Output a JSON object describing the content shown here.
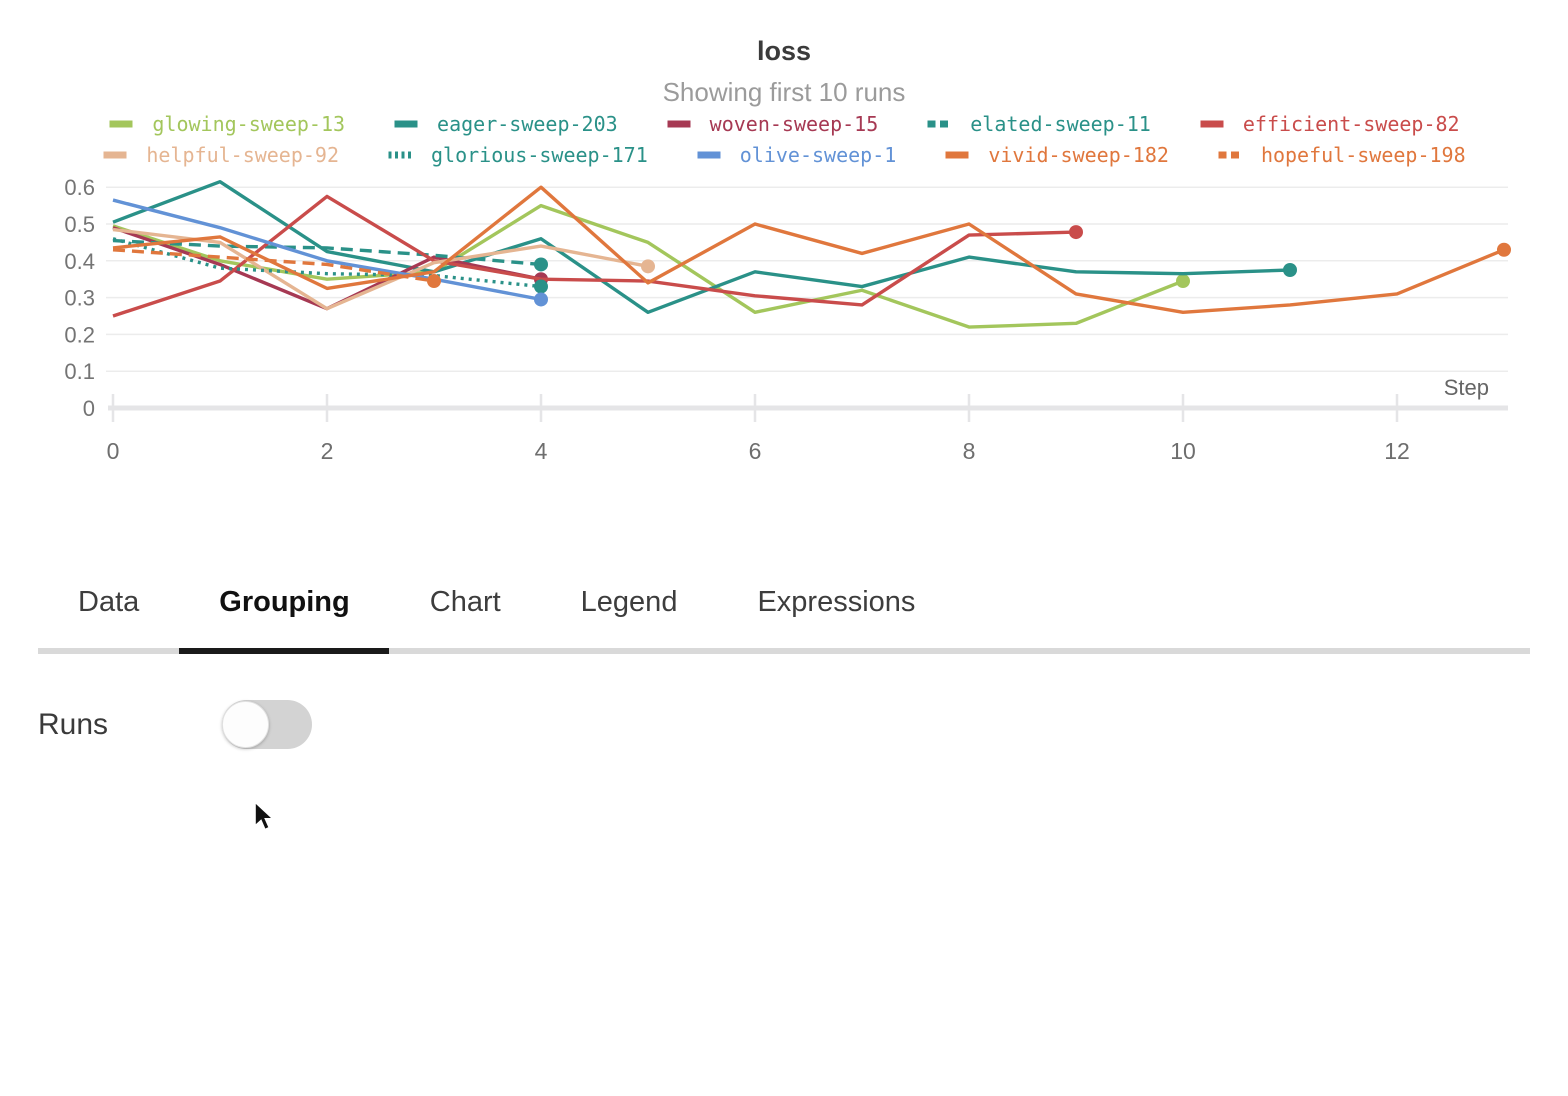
{
  "chart_data": {
    "type": "line",
    "title": "loss",
    "subtitle": "Showing first 10 runs",
    "xlabel": "Step",
    "x_ticks": [
      0,
      2,
      4,
      6,
      8,
      10,
      12
    ],
    "y_ticks": [
      0,
      0.1,
      0.2,
      0.3,
      0.4,
      0.5,
      0.6
    ],
    "xlim": [
      0,
      13
    ],
    "ylim": [
      0,
      0.65
    ],
    "grid": "horizontal-only",
    "legend_position": "top",
    "end_markers": "dot-on-last-point",
    "series": [
      {
        "name": "glowing-sweep-13",
        "color": "#a3c65c",
        "line_style": "solid",
        "values": [
          0.495,
          0.4,
          0.35,
          0.37,
          0.55,
          0.45,
          0.26,
          0.32,
          0.22,
          0.23,
          0.345
        ]
      },
      {
        "name": "eager-sweep-203",
        "color": "#2a9188",
        "line_style": "solid",
        "values": [
          0.505,
          0.615,
          0.425,
          0.37,
          0.46,
          0.26,
          0.37,
          0.33,
          0.41,
          0.37,
          0.365,
          0.375
        ]
      },
      {
        "name": "woven-sweep-15",
        "color": "#a63953",
        "line_style": "solid",
        "values": [
          0.49,
          0.39,
          0.27,
          0.41,
          0.35
        ]
      },
      {
        "name": "elated-sweep-11",
        "color": "#2a9188",
        "line_style": "dashed",
        "values": [
          0.455,
          0.44,
          0.435,
          0.415,
          0.39
        ]
      },
      {
        "name": "efficient-sweep-82",
        "color": "#c94c4b",
        "line_style": "solid",
        "values": [
          0.25,
          0.345,
          0.575,
          0.4,
          0.35,
          0.345,
          0.305,
          0.28,
          0.47,
          0.478
        ]
      },
      {
        "name": "helpful-sweep-92",
        "color": "#e5b592",
        "line_style": "solid",
        "values": [
          0.485,
          0.45,
          0.27,
          0.395,
          0.44,
          0.385
        ]
      },
      {
        "name": "glorious-sweep-171",
        "color": "#2a9188",
        "line_style": "dotted",
        "values": [
          0.46,
          0.38,
          0.365,
          0.36,
          0.33
        ]
      },
      {
        "name": "olive-sweep-1",
        "color": "#6292d6",
        "line_style": "solid",
        "values": [
          0.565,
          0.49,
          0.4,
          0.35,
          0.295
        ]
      },
      {
        "name": "vivid-sweep-182",
        "color": "#e0773d",
        "line_style": "solid",
        "values": [
          0.435,
          0.465,
          0.325,
          0.37,
          0.6,
          0.34,
          0.5,
          0.42,
          0.5,
          0.31,
          0.26,
          0.28,
          0.31,
          0.43
        ]
      },
      {
        "name": "hopeful-sweep-198",
        "color": "#e0773d",
        "line_style": "dashed",
        "values": [
          0.43,
          0.41,
          0.39,
          0.345
        ]
      }
    ]
  },
  "panel": {
    "tabs": [
      "Data",
      "Grouping",
      "Chart",
      "Legend",
      "Expressions"
    ],
    "active_tab": "Grouping",
    "grouping": {
      "runs_label": "Runs",
      "runs_toggle": "off"
    }
  },
  "colors": {
    "grid_line": "#ececec",
    "axis_line": "#e5e5e7",
    "axis_text": "#747474",
    "tab_underline": "#d9d9d9",
    "tab_underline_active": "#1a1a1a"
  }
}
